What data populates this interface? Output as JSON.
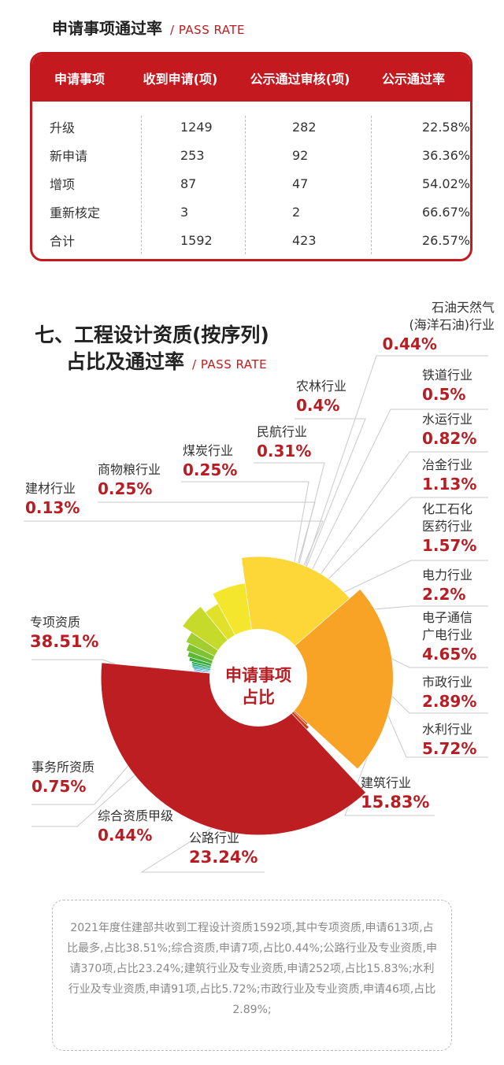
{
  "table_section": {
    "title": "申请事项通过率",
    "subtitle": "/ PASS RATE",
    "headers": [
      "申请事项",
      "收到申请(项)",
      "公示通过审核(项)",
      "公示通过率"
    ],
    "rows": [
      {
        "item": "升级",
        "received": "1249",
        "approved": "282",
        "rate": "22.58%"
      },
      {
        "item": "新申请",
        "received": "253",
        "approved": "92",
        "rate": "36.36%"
      },
      {
        "item": "增项",
        "received": "87",
        "approved": "47",
        "rate": "54.02%"
      },
      {
        "item": "重新核定",
        "received": "3",
        "approved": "2",
        "rate": "66.67%"
      },
      {
        "item": "合计",
        "received": "1592",
        "approved": "423",
        "rate": "26.57%"
      }
    ]
  },
  "chart_section": {
    "title_line1": "七、工程设计资质(按序列)",
    "title_line2": "占比及通过率",
    "subtitle": "/ PASS RATE",
    "center_line1": "申请事项",
    "center_line2": "占比"
  },
  "chart_data": {
    "type": "pie",
    "title": "七、工程设计资质(按序列)占比及通过率",
    "center_label": "申请事项占比",
    "slices": [
      {
        "label": "建筑行业",
        "value": 15.83,
        "pct": "15.83%",
        "color": "#fdd637"
      },
      {
        "label": "公路行业",
        "value": 23.24,
        "pct": "23.24%",
        "color": "#f8a326"
      },
      {
        "label": "综合资质甲级",
        "value": 0.44,
        "pct": "0.44%",
        "color": "#e8561a"
      },
      {
        "label": "事务所资质",
        "value": 0.75,
        "pct": "0.75%",
        "color": "#d23b1c"
      },
      {
        "label": "专项资质",
        "value": 38.51,
        "pct": "38.51%",
        "color": "#bd1e22"
      },
      {
        "label": "建材行业",
        "value": 0.13,
        "pct": "0.13%",
        "color": "#1d4f91"
      },
      {
        "label": "商物粮行业",
        "value": 0.25,
        "pct": "0.25%",
        "color": "#1e6bb8"
      },
      {
        "label": "煤炭行业",
        "value": 0.25,
        "pct": "0.25%",
        "color": "#1b86c9"
      },
      {
        "label": "民航行业",
        "value": 0.31,
        "pct": "0.31%",
        "color": "#1aa0c4"
      },
      {
        "label": "农林行业",
        "value": 0.4,
        "pct": "0.4%",
        "color": "#19a79a"
      },
      {
        "label": "石油天然气(海洋石油)行业",
        "value": 0.44,
        "pct": "0.44%",
        "color": "#1aa36a"
      },
      {
        "label": "铁道行业",
        "value": 0.5,
        "pct": "0.5%",
        "color": "#22a74e"
      },
      {
        "label": "水运行业",
        "value": 0.82,
        "pct": "0.82%",
        "color": "#3aae3c"
      },
      {
        "label": "冶金行业",
        "value": 1.13,
        "pct": "1.13%",
        "color": "#5cb735"
      },
      {
        "label": "化工石化医药行业",
        "value": 1.57,
        "pct": "1.57%",
        "color": "#7fc232"
      },
      {
        "label": "电力行业",
        "value": 2.2,
        "pct": "2.2%",
        "color": "#a3cd30"
      },
      {
        "label": "电子通信广电行业",
        "value": 4.65,
        "pct": "4.65%",
        "color": "#c6da2c"
      },
      {
        "label": "市政行业",
        "value": 2.89,
        "pct": "2.89%",
        "color": "#e1e02a"
      },
      {
        "label": "水利行业",
        "value": 5.72,
        "pct": "5.72%",
        "color": "#f4e62c"
      }
    ]
  },
  "labels": {
    "shiyou_l1": "石油天然气",
    "shiyou_l2": "(海洋石油)行业",
    "huagong_l1": "化工石化",
    "huagong_l2": "医药行业",
    "dianzi_l1": "电子通信",
    "dianzi_l2": "广电行业"
  },
  "note": {
    "text": "2021年度住建部共收到工程设计资质1592项,其中专项资质,申请613项,占比最多,占比38.51%;综合资质,申请7项,占比0.44%;公路行业及专业资质,申请370项,占比23.24%;建筑行业及专业资质,申请252项,占比15.83%;水利行业及专业资质,申请91项,占比5.72%;市政行业及专业资质,申请46项,占比2.89%;"
  }
}
